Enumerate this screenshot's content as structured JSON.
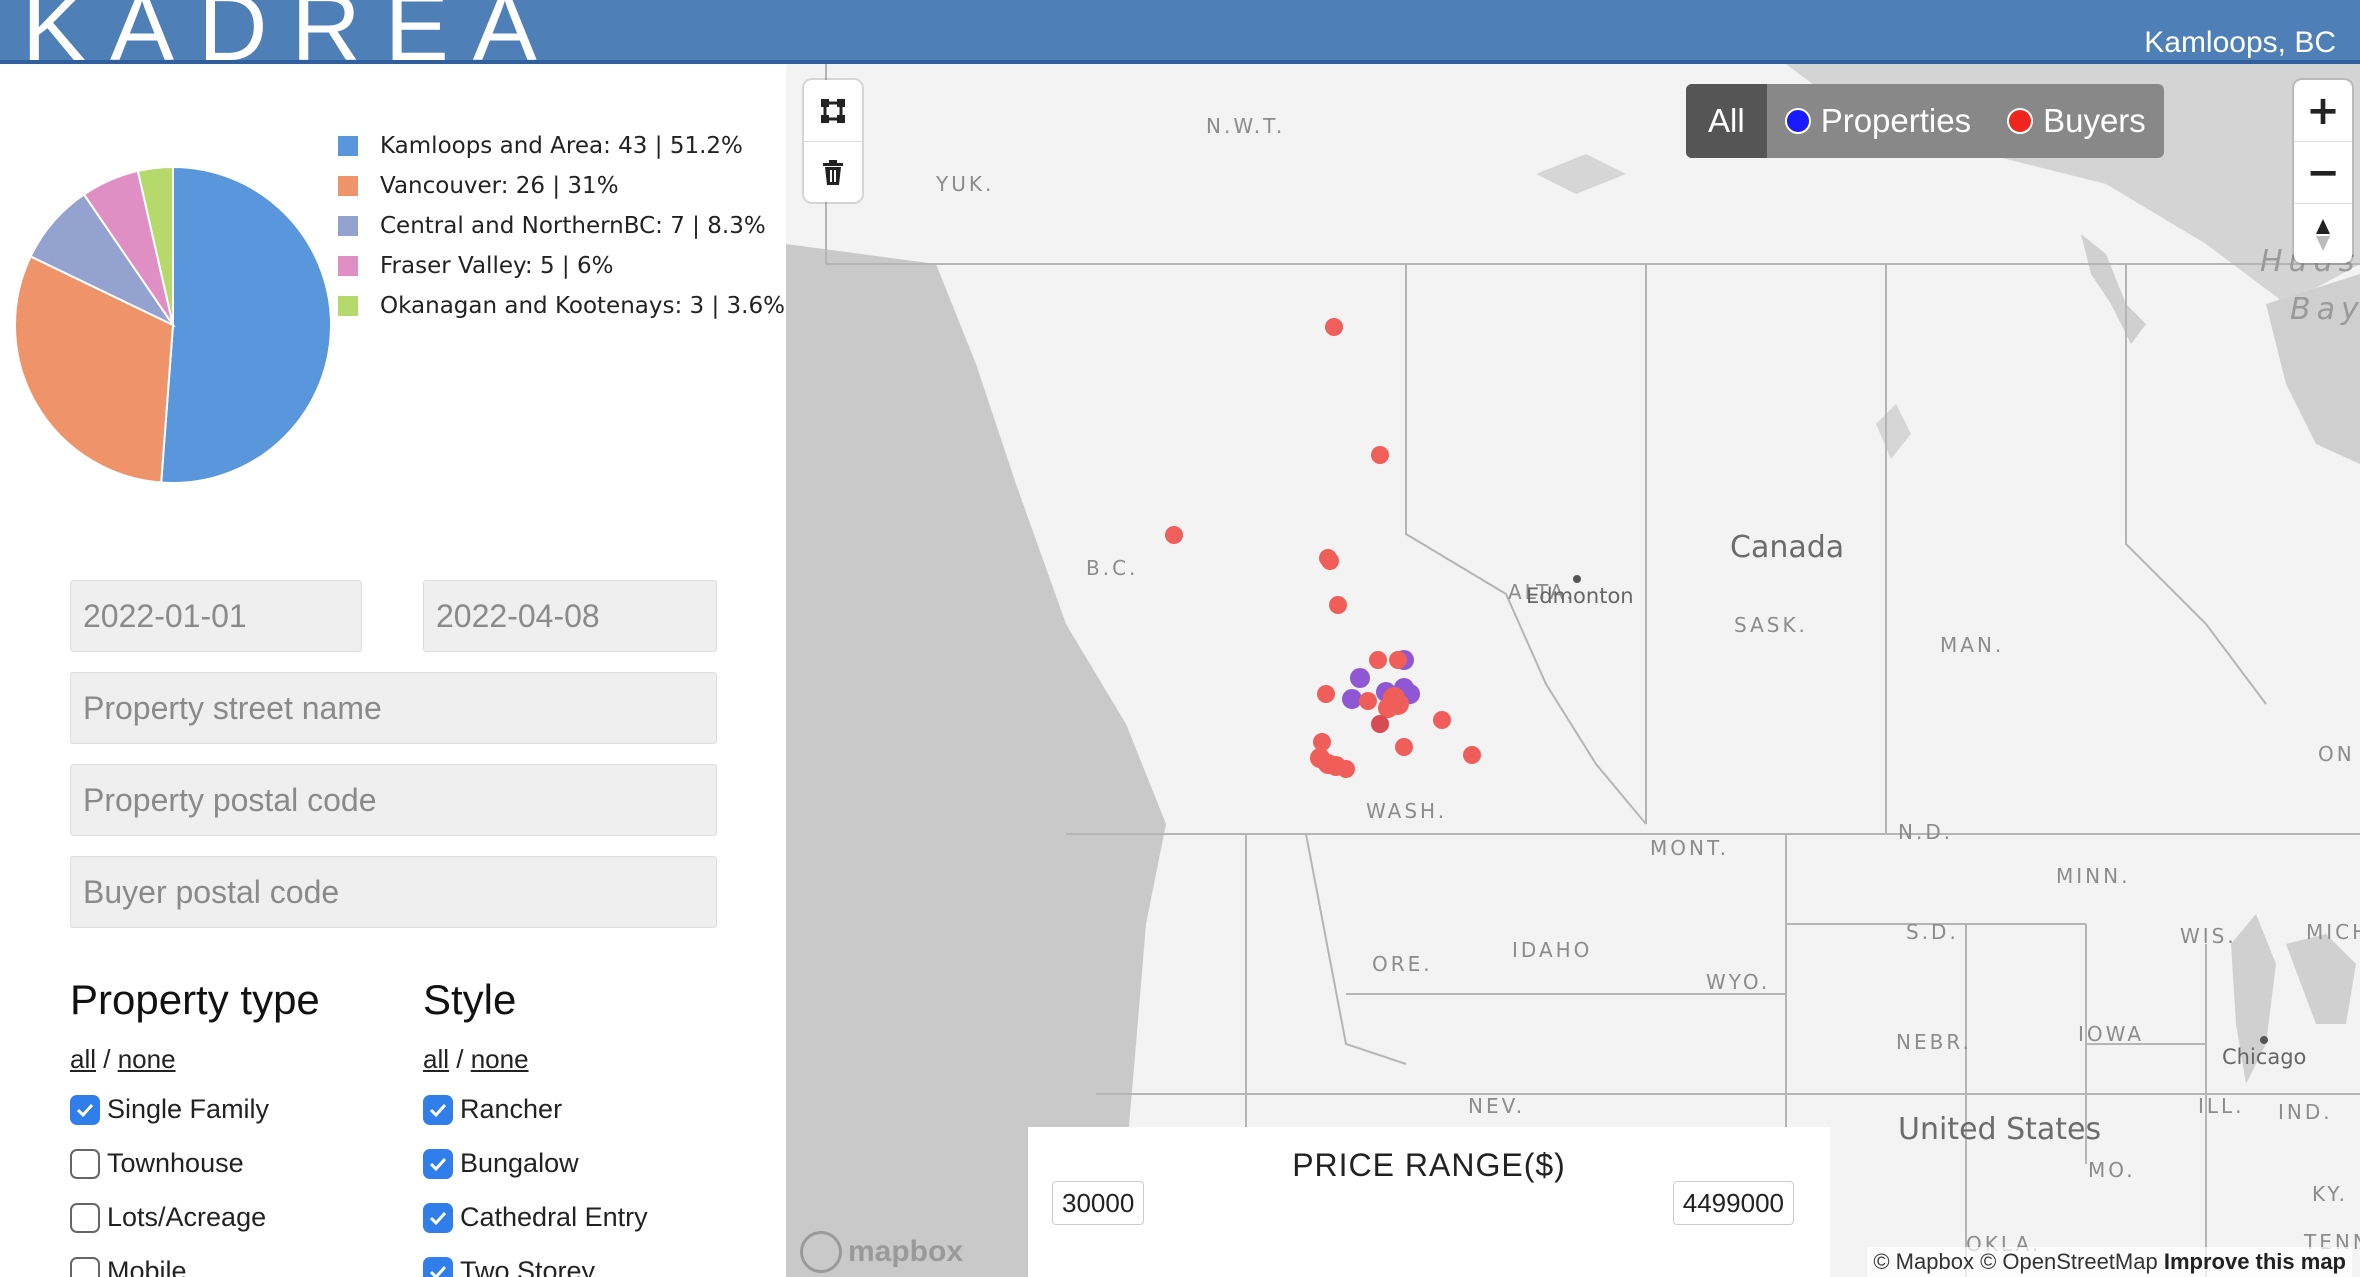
{
  "header": {
    "logo_text": "KADREA",
    "location": "Kamloops, BC",
    "bg_color": "#4f7fb7"
  },
  "pie": {
    "segments": [
      {
        "label": "Kamloops and Area: 43 | 51.2%",
        "value": 43,
        "color": "#5a96dc"
      },
      {
        "label": "Vancouver: 26 | 31%",
        "value": 26,
        "color": "#ef936a"
      },
      {
        "label": "Central and NorthernBC: 7 | 8.3%",
        "value": 7,
        "color": "#93a2cf"
      },
      {
        "label": "Fraser Valley: 5 | 6%",
        "value": 5,
        "color": "#e08fc4"
      },
      {
        "label": "Okanagan and Kootenays: 3 | 3.6%",
        "value": 3,
        "color": "#b5d96a"
      }
    ]
  },
  "filters": {
    "start_date": "2022-01-01",
    "end_date": "2022-04-08",
    "street_placeholder": "Property street name",
    "postal_placeholder": "Property postal code",
    "buyer_postal_placeholder": "Buyer postal code",
    "property_type": {
      "title": "Property type",
      "all": "all",
      "sep": " / ",
      "none": "none",
      "options": [
        {
          "label": "Single Family",
          "checked": true
        },
        {
          "label": "Townhouse",
          "checked": false
        },
        {
          "label": "Lots/Acreage",
          "checked": false
        },
        {
          "label": "Mobile",
          "checked": false
        }
      ]
    },
    "style": {
      "title": "Style",
      "all": "all",
      "sep": " / ",
      "none": "none",
      "options": [
        {
          "label": "Rancher",
          "checked": true
        },
        {
          "label": "Bungalow",
          "checked": true
        },
        {
          "label": "Cathedral Entry",
          "checked": true
        },
        {
          "label": "Two Storey",
          "checked": true
        }
      ]
    }
  },
  "map": {
    "layer_filter": {
      "all": "All",
      "properties": "Properties",
      "buyers": "Buyers",
      "properties_color": "#1a1aff",
      "buyers_color": "#f0261e"
    },
    "zoom_in": "+",
    "zoom_out": "−",
    "labels": {
      "nwt": "N.W.T.",
      "yuk": "YUK.",
      "bc": "B.C.",
      "alta": "ALTA.",
      "sask": "SASK.",
      "man": "MAN.",
      "canada": "Canada",
      "edmonton": "Edmonton",
      "hudson": "Huds",
      "bay": "Bay",
      "on": "ON",
      "wash": "WASH.",
      "mont": "MONT.",
      "nd": "N.D.",
      "minn": "MINN.",
      "sd": "S.D.",
      "wis": "WIS.",
      "mich": "MICH",
      "ore": "ORE.",
      "idaho": "IDAHO",
      "wyo": "WYO.",
      "nebr": "NEBR.",
      "iowa": "IOWA",
      "chicago": "Chicago",
      "nev": "NEV.",
      "ill": "ILL.",
      "ind": "IND.",
      "united_states": "United States",
      "mo": "MO.",
      "ky": "KY.",
      "okla": "OKLA.",
      "tenn": "TENN."
    },
    "price_range": {
      "title": "PRICE RANGE($)",
      "min": "30000",
      "max": "4499000"
    },
    "attribution": {
      "mapbox": "© Mapbox",
      "osm": "© OpenStreetMap",
      "improve": "Improve this map"
    },
    "logo": "mapbox"
  }
}
